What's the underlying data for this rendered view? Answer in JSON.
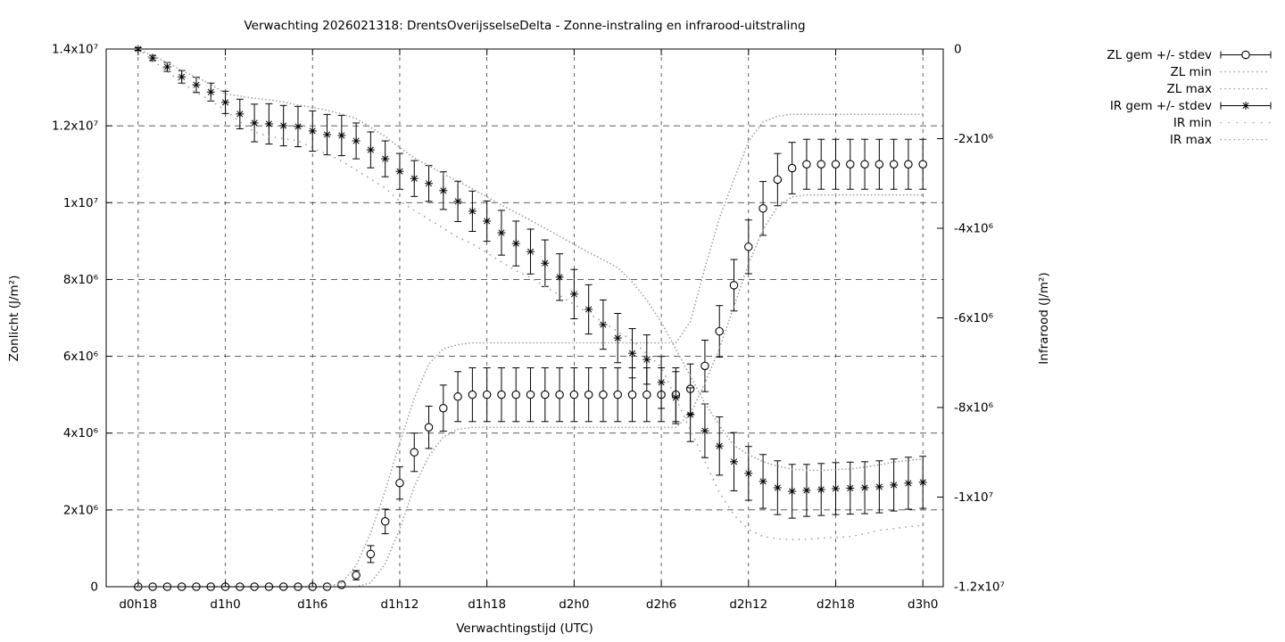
{
  "page": {
    "background": "#ffffff"
  },
  "chart_data": {
    "type": "line",
    "title": "Verwachting 2026021318: DrentsOverijsselseDelta - Zonne-instraling en infrarood-uitstraling",
    "xlabel": "Verwachtingstijd (UTC)",
    "ylabel_left": "Zonlicht (J/m²)",
    "ylabel_right": "Infrarood (J/m²)",
    "grid": true,
    "legend_position": "outside-right-top",
    "colors": {
      "series": "#000000",
      "envelope_dotted": "#999999",
      "grid": "#2a2a2a",
      "border": "#000000"
    },
    "x_axis": {
      "unit": "hours since d0h18",
      "range_hours": [
        -2.2,
        55.4
      ],
      "tick_hours": [
        0,
        6,
        12,
        18,
        24,
        30,
        36,
        42,
        48,
        54
      ],
      "tick_labels": [
        "d0h18",
        "d1h0",
        "d1h6",
        "d1h12",
        "d1h18",
        "d2h0",
        "d2h6",
        "d2h12",
        "d2h18",
        "d3h0"
      ]
    },
    "y_left": {
      "label": "Zonlicht (J/m²)",
      "unit": "J/m2 (values stored in millions)",
      "min": 0,
      "max": 14,
      "ticks": [
        {
          "value": 0,
          "label": "0"
        },
        {
          "value": 2,
          "label": "2x10⁶"
        },
        {
          "value": 4,
          "label": "4x10⁶"
        },
        {
          "value": 6,
          "label": "6x10⁶"
        },
        {
          "value": 8,
          "label": "8x10⁶"
        },
        {
          "value": 10,
          "label": "1x10⁷"
        },
        {
          "value": 12,
          "label": "1.2x10⁷"
        },
        {
          "value": 14,
          "label": "1.4x10⁷"
        }
      ]
    },
    "y_right": {
      "label": "Infrarood (J/m²)",
      "unit": "J/m2 (values stored in millions)",
      "min": -12,
      "max": 0,
      "ticks": [
        {
          "value": 0,
          "label": "0"
        },
        {
          "value": -2,
          "label": "-2x10⁶"
        },
        {
          "value": -4,
          "label": "-4x10⁶"
        },
        {
          "value": -6,
          "label": "-6x10⁶"
        },
        {
          "value": -8,
          "label": "-8x10⁶"
        },
        {
          "value": -10,
          "label": "-1x10⁷"
        },
        {
          "value": -12,
          "label": "-1.2x10⁷"
        }
      ]
    },
    "values_unit": "1e6 J/m2",
    "hours": [
      0,
      1,
      2,
      3,
      4,
      5,
      6,
      7,
      8,
      9,
      10,
      11,
      12,
      13,
      14,
      15,
      16,
      17,
      18,
      19,
      20,
      21,
      22,
      23,
      24,
      25,
      26,
      27,
      28,
      29,
      30,
      31,
      32,
      33,
      34,
      35,
      36,
      37,
      38,
      39,
      40,
      41,
      42,
      43,
      44,
      45,
      46,
      47,
      48,
      49,
      50,
      51,
      52,
      53,
      54
    ],
    "series": [
      {
        "name": "ZL gem +/- stdev",
        "axis": "left",
        "style": "errorbars",
        "marker": "circle",
        "values": [
          0,
          0,
          0,
          0,
          0,
          0,
          0,
          0,
          0,
          0,
          0,
          0,
          0,
          0,
          0.05,
          0.3,
          0.85,
          1.7,
          2.7,
          3.5,
          4.15,
          4.65,
          4.95,
          5.0,
          5.0,
          5.0,
          5.0,
          5.0,
          5.0,
          5.0,
          5.0,
          5.0,
          5.0,
          5.0,
          5.0,
          5.0,
          5.0,
          5.0,
          5.15,
          5.75,
          6.65,
          7.85,
          8.85,
          9.85,
          10.6,
          10.9,
          11.0,
          11.0,
          11.0,
          11.0,
          11.0,
          11.0,
          11.0,
          11.0,
          11.0
        ],
        "stdev": [
          0,
          0,
          0,
          0,
          0,
          0,
          0,
          0,
          0,
          0,
          0,
          0,
          0,
          0,
          0.06,
          0.12,
          0.22,
          0.32,
          0.42,
          0.5,
          0.55,
          0.6,
          0.65,
          0.7,
          0.7,
          0.7,
          0.7,
          0.7,
          0.7,
          0.7,
          0.7,
          0.7,
          0.7,
          0.7,
          0.7,
          0.7,
          0.7,
          0.7,
          0.65,
          0.67,
          0.67,
          0.67,
          0.7,
          0.7,
          0.68,
          0.67,
          0.65,
          0.65,
          0.65,
          0.65,
          0.65,
          0.65,
          0.65,
          0.65,
          0.65
        ]
      },
      {
        "name": "ZL min",
        "axis": "left",
        "style": "dotted",
        "values": [
          0,
          0,
          0,
          0,
          0,
          0,
          0,
          0,
          0,
          0,
          0,
          0,
          0,
          0,
          0,
          0,
          0.1,
          0.6,
          1.5,
          2.6,
          3.4,
          3.9,
          4.1,
          4.15,
          4.15,
          4.15,
          4.15,
          4.15,
          4.15,
          4.15,
          4.15,
          4.15,
          4.15,
          4.15,
          4.15,
          4.15,
          4.15,
          4.15,
          4.5,
          5.3,
          6.2,
          7.3,
          8.4,
          9.3,
          9.9,
          10.15,
          10.2,
          10.2,
          10.2,
          10.2,
          10.2,
          10.2,
          10.2,
          10.2,
          10.2
        ]
      },
      {
        "name": "ZL max",
        "axis": "left",
        "style": "dotted",
        "values": [
          0,
          0,
          0,
          0,
          0,
          0,
          0,
          0,
          0,
          0,
          0,
          0,
          0,
          0,
          0.1,
          0.55,
          1.4,
          2.5,
          3.75,
          4.9,
          5.8,
          6.2,
          6.3,
          6.35,
          6.35,
          6.35,
          6.35,
          6.35,
          6.35,
          6.35,
          6.35,
          6.35,
          6.35,
          6.35,
          6.35,
          6.35,
          6.35,
          6.35,
          6.9,
          8.3,
          9.6,
          10.6,
          11.6,
          12.1,
          12.25,
          12.3,
          12.3,
          12.3,
          12.3,
          12.3,
          12.3,
          12.3,
          12.3,
          12.3,
          12.3
        ]
      },
      {
        "name": "IR gem +/- stdev",
        "axis": "right",
        "style": "errorbars",
        "marker": "asterisk",
        "values": [
          0,
          -0.2,
          -0.4,
          -0.62,
          -0.8,
          -0.96,
          -1.19,
          -1.45,
          -1.65,
          -1.67,
          -1.71,
          -1.73,
          -1.83,
          -1.91,
          -1.93,
          -2.05,
          -2.25,
          -2.45,
          -2.73,
          -2.89,
          -3.0,
          -3.16,
          -3.4,
          -3.62,
          -3.84,
          -4.1,
          -4.34,
          -4.52,
          -4.78,
          -5.09,
          -5.47,
          -5.81,
          -6.15,
          -6.45,
          -6.79,
          -6.93,
          -7.44,
          -7.78,
          -8.16,
          -8.52,
          -8.86,
          -9.21,
          -9.47,
          -9.65,
          -9.79,
          -9.87,
          -9.85,
          -9.83,
          -9.81,
          -9.8,
          -9.79,
          -9.77,
          -9.73,
          -9.69,
          -9.67
        ],
        "stdev": [
          0.03,
          0.06,
          0.1,
          0.14,
          0.17,
          0.2,
          0.25,
          0.33,
          0.42,
          0.45,
          0.45,
          0.45,
          0.45,
          0.45,
          0.45,
          0.4,
          0.4,
          0.4,
          0.4,
          0.4,
          0.4,
          0.42,
          0.45,
          0.45,
          0.45,
          0.5,
          0.5,
          0.5,
          0.52,
          0.52,
          0.55,
          0.55,
          0.55,
          0.55,
          0.55,
          0.55,
          0.58,
          0.58,
          0.6,
          0.6,
          0.65,
          0.65,
          0.6,
          0.6,
          0.6,
          0.6,
          0.58,
          0.58,
          0.58,
          0.58,
          0.58,
          0.58,
          0.58,
          0.58,
          0.58
        ]
      },
      {
        "name": "IR min",
        "axis": "right",
        "style": "dotted-sparse",
        "values": [
          0,
          -0.25,
          -0.5,
          -0.75,
          -0.97,
          -1.15,
          -1.37,
          -1.62,
          -1.85,
          -1.95,
          -2.0,
          -2.05,
          -2.2,
          -2.35,
          -2.5,
          -2.7,
          -2.9,
          -3.1,
          -3.4,
          -3.6,
          -3.8,
          -4.0,
          -4.2,
          -4.35,
          -4.55,
          -4.75,
          -4.95,
          -5.1,
          -5.3,
          -5.5,
          -5.7,
          -5.9,
          -6.1,
          -6.3,
          -6.5,
          -6.8,
          -7.1,
          -7.8,
          -8.5,
          -9.2,
          -9.9,
          -10.4,
          -10.72,
          -10.88,
          -10.93,
          -10.95,
          -10.94,
          -10.92,
          -10.9,
          -10.88,
          -10.82,
          -10.74,
          -10.7,
          -10.66,
          -10.63
        ]
      },
      {
        "name": "IR max",
        "axis": "right",
        "style": "dotted",
        "values": [
          0,
          -0.15,
          -0.3,
          -0.48,
          -0.63,
          -0.78,
          -1.0,
          -1.05,
          -1.1,
          -1.13,
          -1.18,
          -1.25,
          -1.3,
          -1.37,
          -1.45,
          -1.55,
          -1.75,
          -1.95,
          -2.2,
          -2.43,
          -2.6,
          -2.79,
          -2.95,
          -3.12,
          -3.3,
          -3.48,
          -3.65,
          -3.82,
          -4.0,
          -4.18,
          -4.36,
          -4.54,
          -4.7,
          -4.88,
          -5.2,
          -5.6,
          -6.1,
          -6.7,
          -7.3,
          -7.9,
          -8.4,
          -8.85,
          -9.05,
          -9.21,
          -9.31,
          -9.38,
          -9.4,
          -9.4,
          -9.39,
          -9.37,
          -9.33,
          -9.28,
          -9.22,
          -9.18,
          -9.15
        ]
      }
    ],
    "legend": [
      {
        "label": "ZL gem +/- stdev",
        "sample": "errorbar-circle"
      },
      {
        "label": "ZL min",
        "sample": "dotted"
      },
      {
        "label": "ZL max",
        "sample": "dotted"
      },
      {
        "label": "IR gem +/- stdev",
        "sample": "errorbar-asterisk"
      },
      {
        "label": "IR min",
        "sample": "dotted-sparse"
      },
      {
        "label": "IR max",
        "sample": "dotted"
      }
    ]
  }
}
